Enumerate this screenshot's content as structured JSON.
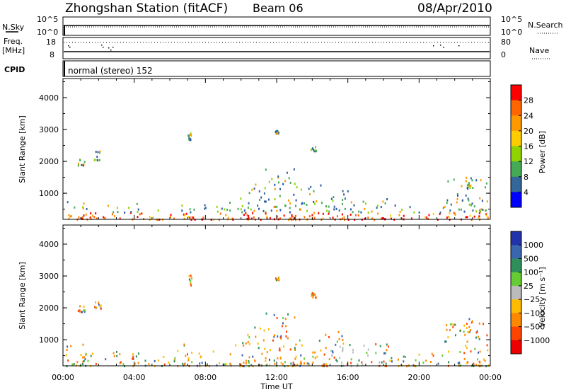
{
  "header": {
    "station": "Zhongshan Station (fitACF)",
    "beam": "Beam 06",
    "date": "08/Apr/2010"
  },
  "top_panels": {
    "nsky_label": "N.Sky",
    "nsearch_label": "N.Search",
    "nsky_ticks": [
      "10^5",
      "10^0"
    ],
    "nsearch_ticks": [
      "10^5",
      "10^0"
    ],
    "freq_label": "Freq.",
    "freq_unit": "[MHz]",
    "freq_ticks": [
      "18",
      "8"
    ],
    "nave_label": "Nave",
    "nave_ticks": [
      "80",
      "0"
    ],
    "cpid_label": "CPID",
    "cpid_text": "normal (stereo) 152"
  },
  "chart_data": [
    {
      "type": "heatmap",
      "quantity": "Power",
      "ylabel": "Slant Range [km]",
      "yticks": [
        "4000",
        "3000",
        "2000",
        "1000"
      ],
      "ylim": [
        180,
        4600
      ],
      "colorbar_label": "Power [dB]",
      "colorbar_ticks": [
        "28",
        "24",
        "20",
        "16",
        "12",
        "8",
        "4"
      ],
      "colorbar_colors": [
        "#ff0000",
        "#ff6600",
        "#ff9900",
        "#ffcc00",
        "#8fd400",
        "#44aa55",
        "#336699",
        "#0000ff"
      ]
    },
    {
      "type": "heatmap",
      "quantity": "Velocity",
      "ylabel": "Slant Range [km]",
      "yticks": [
        "4000",
        "3000",
        "2000",
        "1000"
      ],
      "ylim": [
        180,
        4600
      ],
      "colorbar_label": "Velocity [m s⁻¹]",
      "colorbar_ticks": [
        "1000",
        "500",
        "100",
        "25",
        "−25",
        "−100",
        "−500",
        "−1000"
      ],
      "colorbar_colors": [
        "#2233aa",
        "#3a66b0",
        "#2f8f5a",
        "#66cc33",
        "#bbbbbb",
        "#ffbb00",
        "#ff8800",
        "#ff4400",
        "#ee0000"
      ]
    }
  ],
  "xaxis": {
    "label": "Time UT",
    "ticks": [
      "00:00",
      "04:00",
      "08:00",
      "12:00",
      "16:00",
      "20:00",
      "00:00"
    ],
    "xlim": [
      0,
      24
    ]
  },
  "echo_regions": [
    {
      "t0": 0.0,
      "t1": 1.3,
      "r0": 200,
      "r1": 900
    },
    {
      "t0": 1.0,
      "t1": 2.3,
      "r0": 200,
      "r1": 600
    },
    {
      "t0": 2.3,
      "t1": 4.6,
      "r0": 200,
      "r1": 700
    },
    {
      "t0": 4.6,
      "t1": 6.6,
      "r0": 200,
      "r1": 500
    },
    {
      "t0": 6.4,
      "t1": 7.4,
      "r0": 200,
      "r1": 1000
    },
    {
      "t0": 7.4,
      "t1": 9.2,
      "r0": 200,
      "r1": 700
    },
    {
      "t0": 9.2,
      "t1": 10.4,
      "r0": 200,
      "r1": 1000
    },
    {
      "t0": 10.3,
      "t1": 11.3,
      "r0": 200,
      "r1": 1500
    },
    {
      "t0": 11.3,
      "t1": 13.1,
      "r0": 200,
      "r1": 1900
    },
    {
      "t0": 13.0,
      "t1": 16.0,
      "r0": 200,
      "r1": 1300
    },
    {
      "t0": 16.0,
      "t1": 18.8,
      "r0": 200,
      "r1": 900
    },
    {
      "t0": 18.8,
      "t1": 21.4,
      "r0": 200,
      "r1": 600
    },
    {
      "t0": 21.4,
      "t1": 23.9,
      "r0": 200,
      "r1": 1600
    },
    {
      "t0": 1.7,
      "t1": 2.1,
      "r0": 2000,
      "r1": 2400
    },
    {
      "t0": 0.8,
      "t1": 1.2,
      "r0": 1900,
      "r1": 2100
    },
    {
      "t0": 7.0,
      "t1": 7.2,
      "r0": 2700,
      "r1": 3050
    },
    {
      "t0": 13.9,
      "t1": 14.2,
      "r0": 2350,
      "r1": 2500
    },
    {
      "t0": 11.9,
      "t1": 12.1,
      "r0": 2900,
      "r1": 3000
    },
    {
      "t0": 22.6,
      "t1": 23.0,
      "r0": 1200,
      "r1": 1700
    }
  ]
}
